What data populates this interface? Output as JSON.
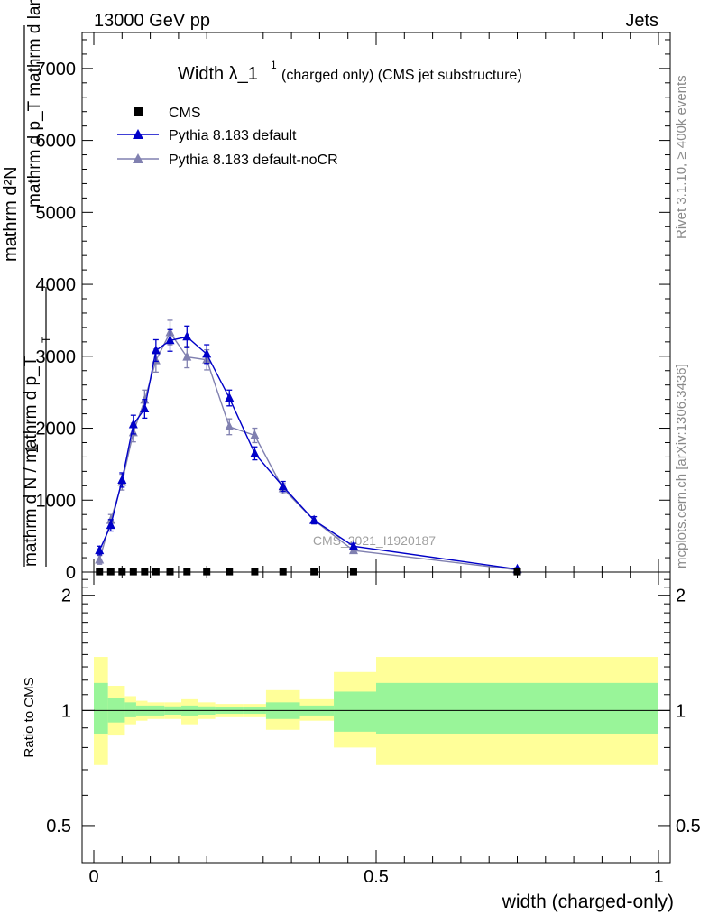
{
  "header": {
    "left": "13000 GeV pp",
    "right": "Jets"
  },
  "side_labels": {
    "rivet": "Rivet 3.1.10, ≥ 400k events",
    "mcplots": "mcplots.cern.ch [arXiv:1306.3436]"
  },
  "colors": {
    "cms": "#000000",
    "default": "#0000c8",
    "nocr": "#8080b0",
    "band_inner": "#99f599",
    "band_outer": "#ffff99"
  },
  "chart_data": [
    {
      "type": "line",
      "panel": "main",
      "title_main": "Width λ_1",
      "title_sup": "1",
      "title_rest": "(charged only) (CMS jet substructure)",
      "ylabel_numerator": "mathrm d²N",
      "ylabel_denominator": "mathrm d p_T mathrm d lambda",
      "ylabel_prefix_num": "1",
      "ylabel_prefix_den": "mathrm d N / mathrm d p_T",
      "ylabel_sub": "T",
      "yticks": [
        0,
        1000,
        2000,
        3000,
        4000,
        5000,
        6000,
        7000
      ],
      "tick_labels": [
        "0",
        "1000",
        "2000",
        "3000",
        "4000",
        "5000",
        "6000",
        "7000"
      ],
      "xlim": [
        0,
        1
      ],
      "ylim": [
        0,
        7500
      ],
      "watermark": "CMS_2021_I1920187",
      "legend": [
        "CMS",
        "Pythia 8.183 default",
        "Pythia 8.183 default-noCR"
      ],
      "x": [
        0.01,
        0.03,
        0.05,
        0.07,
        0.09,
        0.11,
        0.135,
        0.165,
        0.2,
        0.24,
        0.285,
        0.335,
        0.39,
        0.46,
        0.75
      ],
      "series": [
        {
          "name": "CMS",
          "values": [
            5,
            5,
            5,
            5,
            5,
            5,
            5,
            5,
            5,
            5,
            5,
            5,
            5,
            5,
            5
          ],
          "marker": "square"
        },
        {
          "name": "Pythia 8.183 default",
          "values": [
            300,
            650,
            1280,
            2050,
            2270,
            3080,
            3220,
            3270,
            3030,
            2420,
            1650,
            1190,
            720,
            360,
            40
          ],
          "errors": [
            60,
            80,
            100,
            130,
            130,
            150,
            150,
            150,
            130,
            110,
            90,
            70,
            50,
            40,
            20
          ],
          "marker": "triangle"
        },
        {
          "name": "Pythia 8.183 default-noCR",
          "values": [
            170,
            720,
            1250,
            1940,
            2390,
            2940,
            3330,
            2990,
            2950,
            2020,
            1900,
            1160,
            720,
            300,
            30
          ],
          "errors": [
            60,
            80,
            110,
            130,
            140,
            160,
            170,
            150,
            140,
            110,
            100,
            70,
            50,
            40,
            20
          ],
          "marker": "triangle"
        }
      ]
    },
    {
      "type": "area",
      "panel": "ratio",
      "ylabel": "Ratio to CMS",
      "yscale": "log",
      "ylim": [
        0.4,
        2.3
      ],
      "yticks": [
        0.5,
        1,
        2
      ],
      "ytick_labels": [
        "0.5",
        "1",
        "2"
      ],
      "xlim": [
        0,
        1
      ],
      "xticks": [
        0,
        0.5,
        1
      ],
      "xtick_labels": [
        "0",
        "0.5",
        "1"
      ],
      "xlabel": "width (charged-only)",
      "bin_edges": [
        0,
        0.025,
        0.055,
        0.075,
        0.095,
        0.125,
        0.155,
        0.185,
        0.215,
        0.265,
        0.305,
        0.365,
        0.425,
        0.5,
        1.0
      ],
      "band_inner": [
        [
          0.87,
          1.18
        ],
        [
          0.93,
          1.08
        ],
        [
          0.96,
          1.05
        ],
        [
          0.97,
          1.03
        ],
        [
          0.97,
          1.03
        ],
        [
          0.975,
          1.025
        ],
        [
          0.97,
          1.03
        ],
        [
          0.975,
          1.025
        ],
        [
          0.98,
          1.02
        ],
        [
          0.98,
          1.02
        ],
        [
          0.95,
          1.05
        ],
        [
          0.97,
          1.03
        ],
        [
          0.88,
          1.12
        ],
        [
          0.87,
          1.18
        ]
      ],
      "band_outer": [
        [
          0.72,
          1.38
        ],
        [
          0.86,
          1.16
        ],
        [
          0.92,
          1.09
        ],
        [
          0.94,
          1.06
        ],
        [
          0.95,
          1.05
        ],
        [
          0.95,
          1.05
        ],
        [
          0.92,
          1.07
        ],
        [
          0.95,
          1.05
        ],
        [
          0.96,
          1.04
        ],
        [
          0.96,
          1.04
        ],
        [
          0.89,
          1.13
        ],
        [
          0.94,
          1.07
        ],
        [
          0.8,
          1.26
        ],
        [
          0.72,
          1.38
        ]
      ]
    }
  ]
}
